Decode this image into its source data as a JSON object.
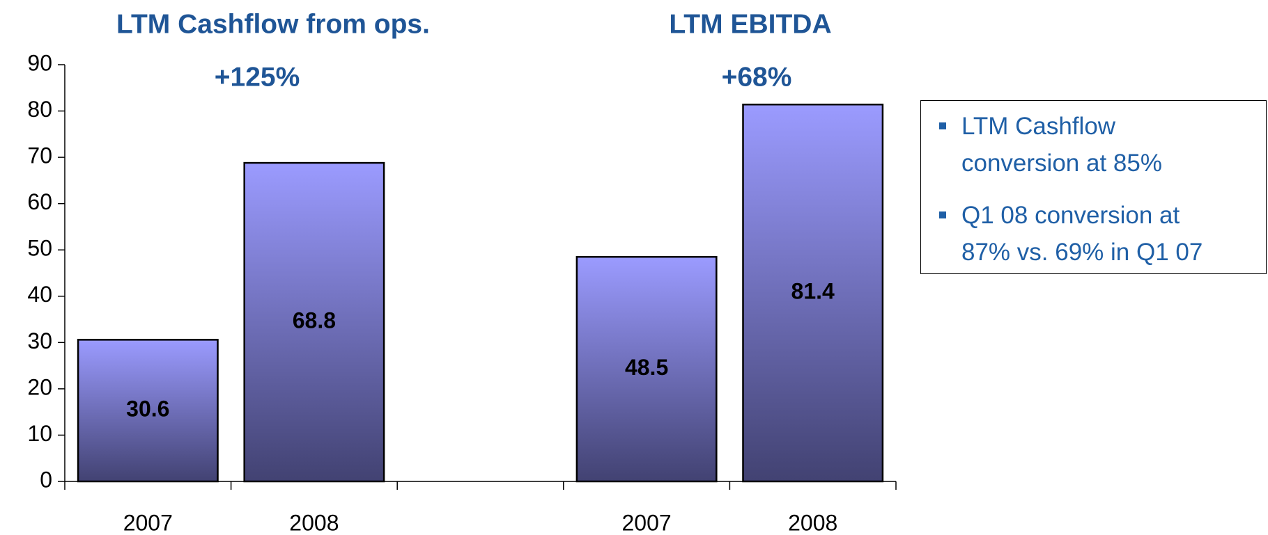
{
  "chart_data": {
    "type": "bar",
    "categories": [
      "2007",
      "2008",
      null,
      "2007",
      "2008"
    ],
    "values": [
      30.6,
      68.8,
      null,
      48.5,
      81.4
    ],
    "color": "#9b9bff",
    "ylim": [
      0,
      90
    ],
    "yticks": [
      0,
      10,
      20,
      30,
      40,
      50,
      60,
      70,
      80,
      90
    ],
    "groups": [
      {
        "title": "LTM Cashflow from ops.",
        "annotation": "+125%"
      },
      {
        "title": "LTM EBITDA",
        "annotation": "+68%"
      }
    ],
    "notes": [
      "LTM Cashflow conversion at 85%",
      "Q1 08 conversion at 87% vs. 69% in Q1 07"
    ]
  }
}
